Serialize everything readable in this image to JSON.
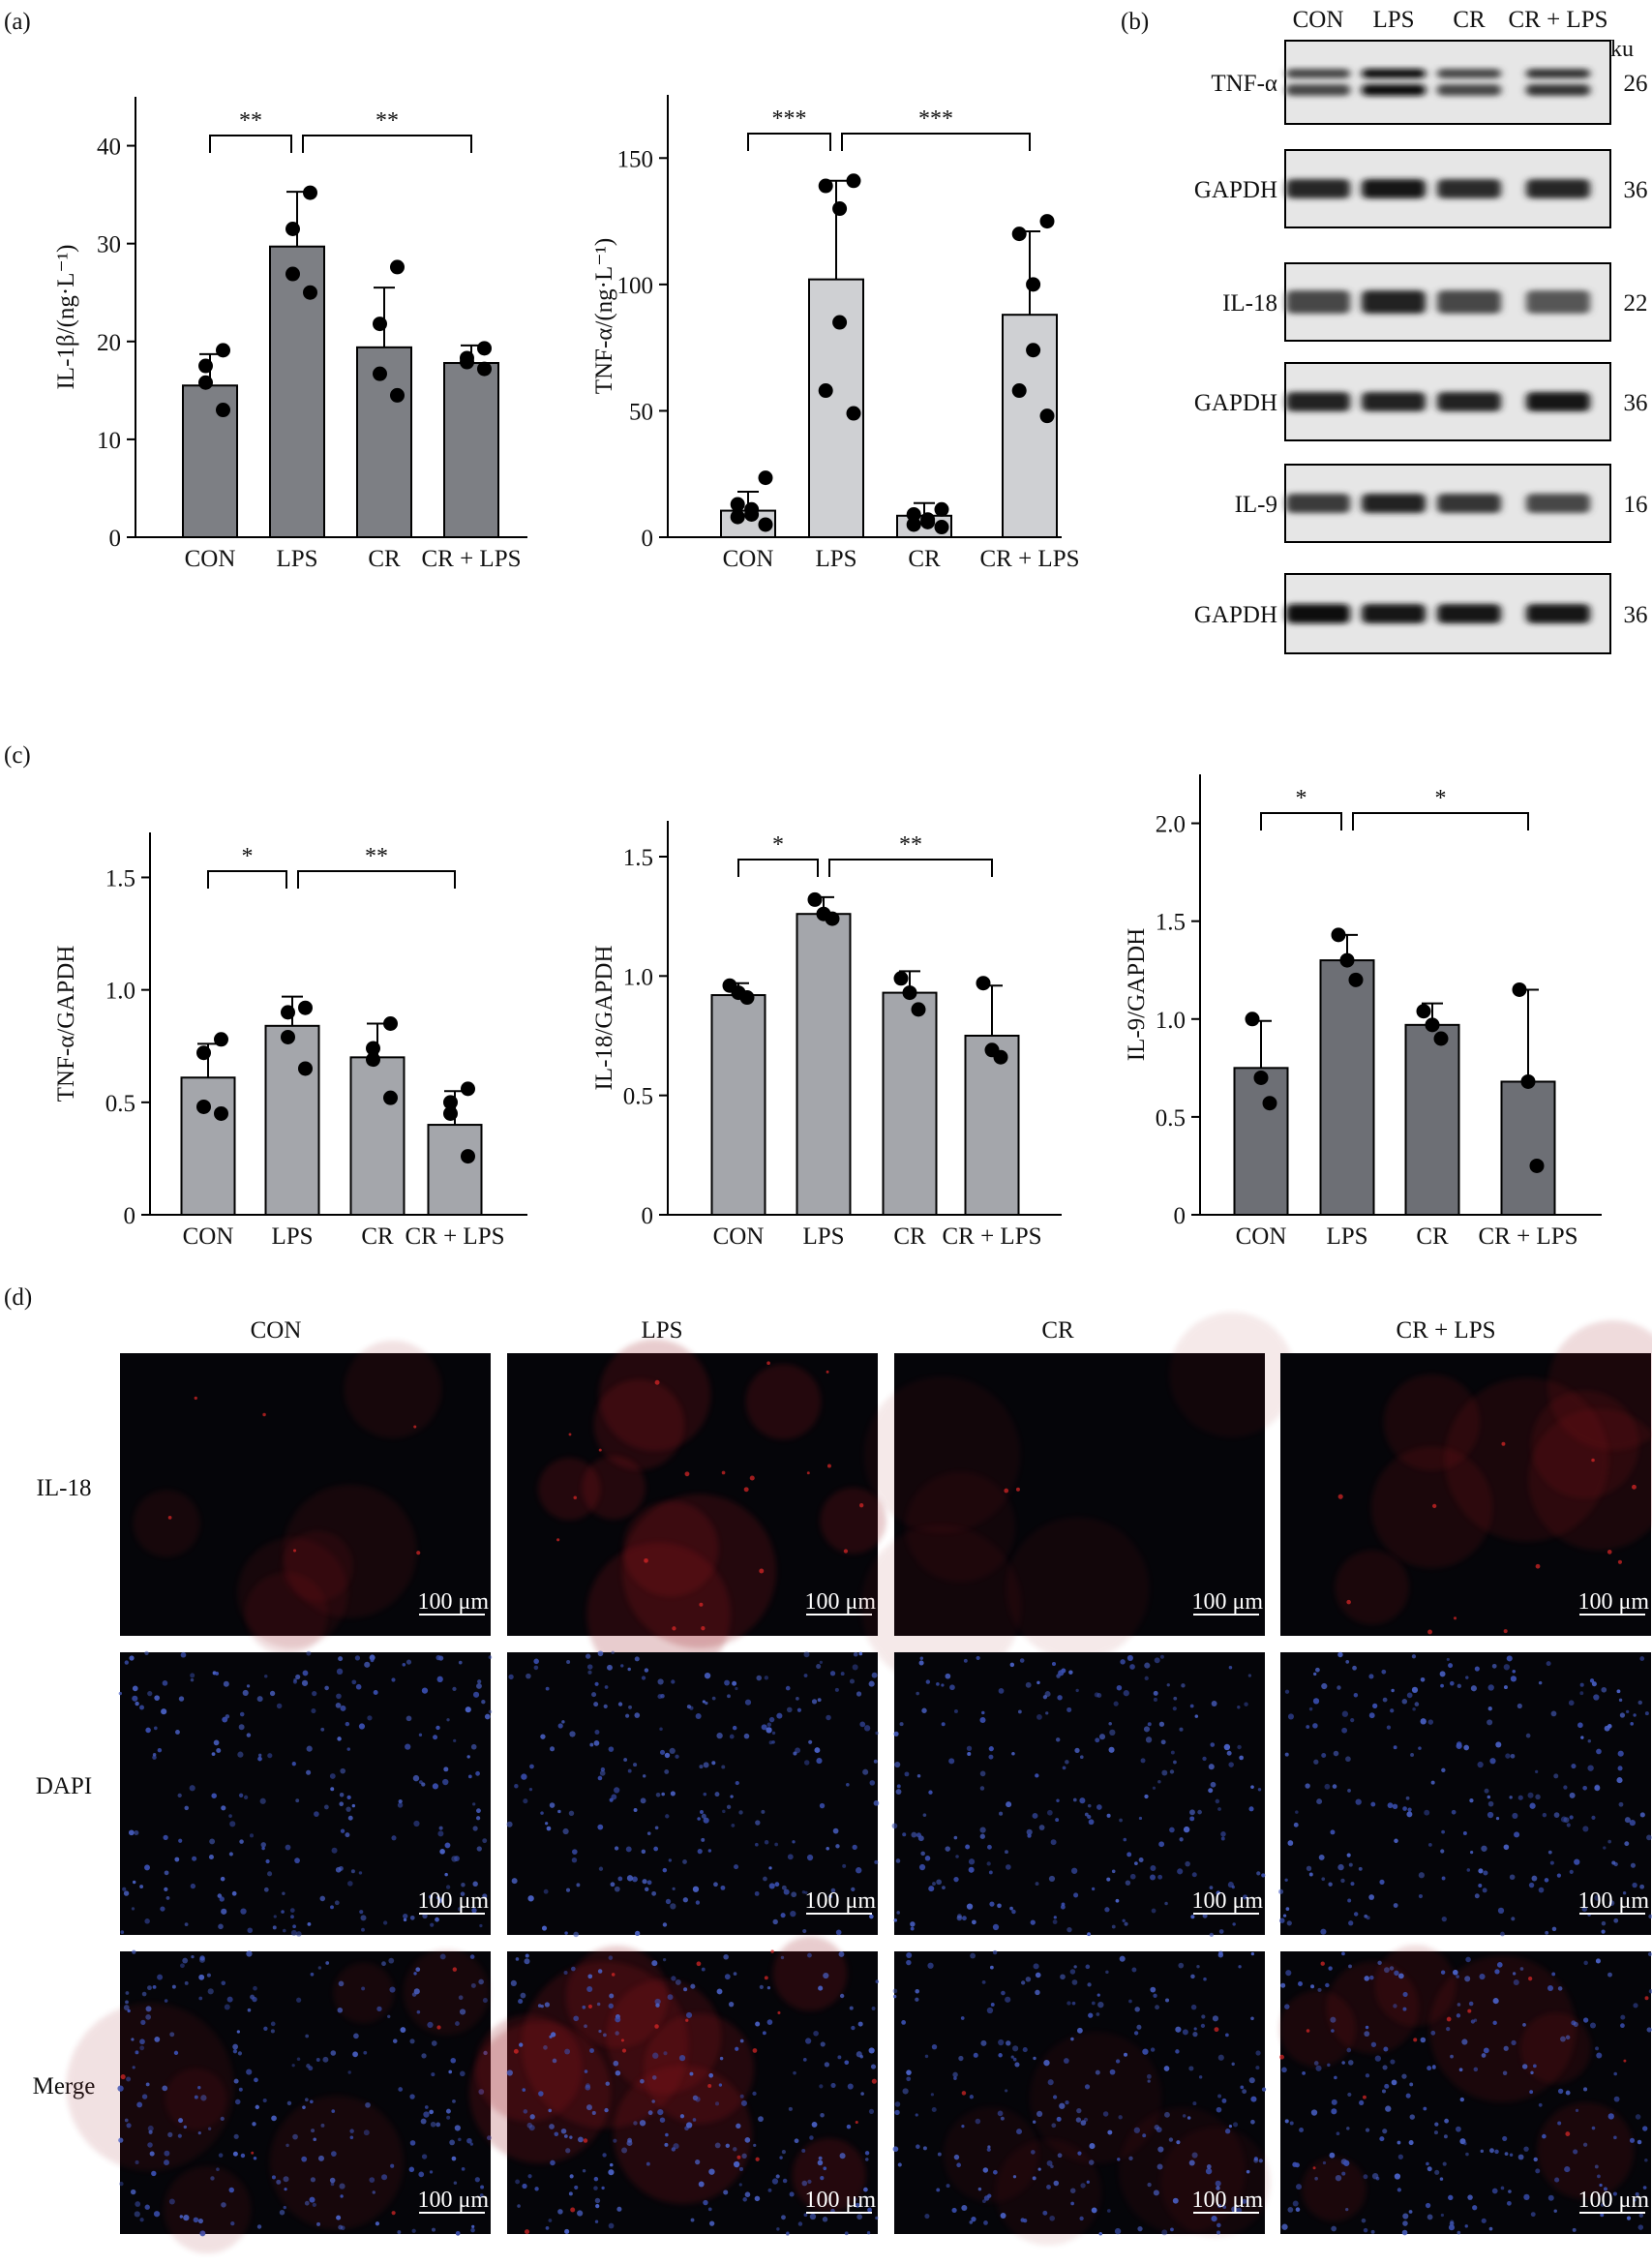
{
  "panel_labels": {
    "a": "(a)",
    "b": "(b)",
    "c": "(c)",
    "d": "(d)"
  },
  "chart_data": [
    {
      "id": "il1b",
      "type": "bar",
      "ylabel": "IL-1β/(ng·L⁻¹)",
      "categories": [
        "CON",
        "LPS",
        "CR",
        "CR + LPS"
      ],
      "values": [
        15.5,
        29.7,
        19.4,
        17.8
      ],
      "errors": [
        3.2,
        5.6,
        6.1,
        1.8
      ],
      "points": [
        [
          13,
          15.8,
          17.5,
          19.1
        ],
        [
          25,
          26.9,
          31.5,
          35.2
        ],
        [
          14.5,
          16.7,
          21.8,
          27.6
        ],
        [
          17.2,
          17.9,
          18.3,
          19.3
        ]
      ],
      "ylim": [
        0,
        45
      ],
      "yticks": [
        0,
        10,
        20,
        30,
        40
      ],
      "bar_color": "#7d7f84",
      "sig": [
        {
          "from": 0,
          "to": 1,
          "label": "**"
        },
        {
          "from": 1,
          "to": 3,
          "label": "**"
        }
      ]
    },
    {
      "id": "tnfa_elisa",
      "type": "bar",
      "ylabel": "TNF-α/(ng·L⁻¹)",
      "categories": [
        "CON",
        "LPS",
        "CR",
        "CR + LPS"
      ],
      "values": [
        10.5,
        102,
        8.5,
        88
      ],
      "errors": [
        7.5,
        39,
        5,
        33
      ],
      "points": [
        [
          5,
          8,
          9,
          11,
          13,
          23.5
        ],
        [
          49,
          58,
          85,
          130,
          139,
          141
        ],
        [
          4,
          5,
          6,
          7,
          9,
          11
        ],
        [
          48,
          58,
          74,
          100,
          120,
          125
        ]
      ],
      "ylim": [
        0,
        175
      ],
      "yticks": [
        0,
        50,
        100,
        150
      ],
      "bar_color": "#cfd0d3",
      "sig": [
        {
          "from": 0,
          "to": 1,
          "label": "***"
        },
        {
          "from": 1,
          "to": 3,
          "label": "***"
        }
      ]
    },
    {
      "id": "tnfa_gapdh",
      "type": "bar",
      "ylabel": "TNF-α/GAPDH",
      "categories": [
        "CON",
        "LPS",
        "CR",
        "CR + LPS"
      ],
      "values": [
        0.61,
        0.84,
        0.7,
        0.4
      ],
      "errors": [
        0.15,
        0.13,
        0.15,
        0.15
      ],
      "points": [
        [
          0.45,
          0.48,
          0.72,
          0.78
        ],
        [
          0.65,
          0.79,
          0.9,
          0.92
        ],
        [
          0.52,
          0.69,
          0.74,
          0.85
        ],
        [
          0.26,
          0.45,
          0.5,
          0.56
        ]
      ],
      "ylim": [
        0,
        1.7
      ],
      "yticks": [
        0,
        0.5,
        1.0,
        1.5
      ],
      "bar_color": "#a4a6ab",
      "sig": [
        {
          "from": 0,
          "to": 1,
          "label": "*"
        },
        {
          "from": 1,
          "to": 3,
          "label": "**"
        }
      ]
    },
    {
      "id": "il18_gapdh",
      "type": "bar",
      "ylabel": "IL-18/GAPDH",
      "categories": [
        "CON",
        "LPS",
        "CR",
        "CR + LPS"
      ],
      "values": [
        0.92,
        1.26,
        0.93,
        0.75
      ],
      "errors": [
        0.05,
        0.07,
        0.09,
        0.21
      ],
      "points": [
        [
          0.91,
          0.93,
          0.96
        ],
        [
          1.24,
          1.26,
          1.32
        ],
        [
          0.86,
          0.93,
          0.99
        ],
        [
          0.66,
          0.69,
          0.97
        ]
      ],
      "ylim": [
        0,
        1.65
      ],
      "yticks": [
        0,
        0.5,
        1.0,
        1.5
      ],
      "bar_color": "#a4a6ab",
      "sig": [
        {
          "from": 0,
          "to": 1,
          "label": "*"
        },
        {
          "from": 1,
          "to": 3,
          "label": "**"
        }
      ]
    },
    {
      "id": "il9_gapdh",
      "type": "bar",
      "ylabel": "IL-9/GAPDH",
      "categories": [
        "CON",
        "LPS",
        "CR",
        "CR + LPS"
      ],
      "values": [
        0.75,
        1.3,
        0.97,
        0.68
      ],
      "errors": [
        0.24,
        0.13,
        0.11,
        0.47
      ],
      "points": [
        [
          0.57,
          0.7,
          1.0
        ],
        [
          1.2,
          1.3,
          1.43
        ],
        [
          0.9,
          0.97,
          1.04
        ],
        [
          0.25,
          0.68,
          1.15
        ]
      ],
      "ylim": [
        0,
        2.25
      ],
      "yticks": [
        0,
        0.5,
        1.0,
        1.5,
        2.0
      ],
      "bar_color": "#6d6f75",
      "sig": [
        {
          "from": 0,
          "to": 1,
          "label": "*"
        },
        {
          "from": 1,
          "to": 3,
          "label": "*"
        }
      ]
    }
  ],
  "western_blot": {
    "columns": [
      "CON",
      "LPS",
      "CR",
      "CR + LPS"
    ],
    "unit": "ku",
    "rows": [
      {
        "label": "TNF-α",
        "size": "26",
        "intensity": [
          0.45,
          0.95,
          0.45,
          0.6
        ]
      },
      {
        "label": "GAPDH",
        "size": "36",
        "intensity": [
          0.75,
          0.9,
          0.7,
          0.75
        ]
      },
      {
        "label": "IL-18",
        "size": "22",
        "intensity": [
          0.45,
          0.8,
          0.45,
          0.3
        ]
      },
      {
        "label": "GAPDH",
        "size": "36",
        "intensity": [
          0.8,
          0.8,
          0.8,
          0.9
        ]
      },
      {
        "label": "IL-9",
        "size": "16",
        "intensity": [
          0.55,
          0.8,
          0.6,
          0.45
        ]
      },
      {
        "label": "GAPDH",
        "size": "36",
        "intensity": [
          0.95,
          0.9,
          0.9,
          0.9
        ]
      }
    ]
  },
  "microscopy": {
    "columns": [
      "CON",
      "LPS",
      "CR",
      "CR + LPS"
    ],
    "rows": [
      {
        "label": "IL-18",
        "channel": "red"
      },
      {
        "label": "DAPI",
        "channel": "blue"
      },
      {
        "label": "Merge",
        "channel": "merge"
      }
    ],
    "scale_bar": "100 μm",
    "red_signal": [
      0.15,
      0.5,
      0.05,
      0.3
    ]
  }
}
